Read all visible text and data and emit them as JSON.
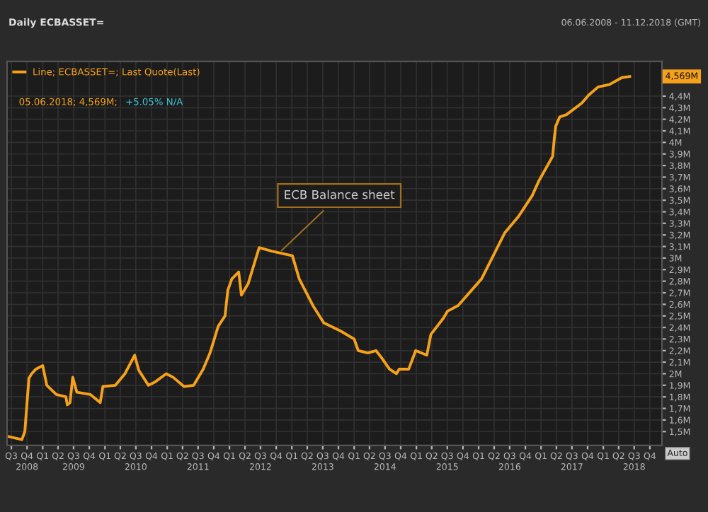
{
  "chart_data": {
    "type": "line",
    "title": "Daily ECBASSET=",
    "subtitle": "06.06.2008 - 11.12.2018 (GMT)",
    "annotations": [
      {
        "text": "ECB Balance sheet",
        "x": "2012-10-15",
        "y": 3.04
      },
      "4,569M",
      "05.06.2018; 4,569M;",
      "+5.05% N/A",
      "Auto"
    ],
    "series": [
      {
        "name": "Line; ECBASSET=; Last Quote(Last)",
        "color": "#f5a11c",
        "x": [
          "2008-06-06",
          "2008-09-01",
          "2008-09-18",
          "2008-10-12",
          "2008-10-28",
          "2008-11-22",
          "2009-01-01",
          "2009-01-25",
          "2009-03-22",
          "2009-05-17",
          "2009-05-25",
          "2009-06-10",
          "2009-06-26",
          "2009-07-20",
          "2009-10-08",
          "2009-12-04",
          "2009-12-20",
          "2010-03-03",
          "2010-04-28",
          "2010-06-24",
          "2010-07-18",
          "2010-09-13",
          "2010-10-23",
          "2010-12-26",
          "2011-02-04",
          "2011-04-09",
          "2011-06-05",
          "2011-07-31",
          "2011-09-09",
          "2011-10-27",
          "2011-12-06",
          "2011-12-22",
          "2012-01-15",
          "2012-02-24",
          "2012-03-11",
          "2012-04-20",
          "2012-06-23",
          "2012-09-04",
          "2013-01-04",
          "2013-02-13",
          "2013-05-04",
          "2013-07-07",
          "2013-10-13",
          "2014-01-01",
          "2014-01-25",
          "2014-03-22",
          "2014-05-09",
          "2014-06-10",
          "2014-07-27",
          "2014-09-06",
          "2014-09-22",
          "2014-11-17",
          "2014-12-28",
          "2015-03-03",
          "2015-03-27",
          "2015-06-08",
          "2015-07-02",
          "2015-09-03",
          "2016-01-18",
          "2016-06-03",
          "2016-08-22",
          "2016-11-10",
          "2016-12-20",
          "2017-03-10",
          "2017-03-20",
          "2017-03-28",
          "2017-04-20",
          "2017-05-30",
          "2017-08-28",
          "2017-10-08",
          "2017-12-02",
          "2018-02-05",
          "2018-04-20",
          "2018-06-05"
        ],
        "values": [
          1.46,
          1.43,
          1.5,
          1.96,
          2.0,
          2.04,
          2.07,
          1.9,
          1.82,
          1.8,
          1.73,
          1.75,
          1.97,
          1.84,
          1.82,
          1.75,
          1.89,
          1.9,
          2.0,
          2.16,
          2.03,
          1.9,
          1.93,
          2.0,
          1.97,
          1.89,
          1.9,
          2.04,
          2.18,
          2.41,
          2.5,
          2.72,
          2.82,
          2.88,
          2.68,
          2.78,
          3.09,
          3.06,
          3.02,
          2.82,
          2.59,
          2.44,
          2.37,
          2.3,
          2.2,
          2.18,
          2.2,
          2.14,
          2.04,
          2.0,
          2.04,
          2.04,
          2.2,
          2.16,
          2.34,
          2.48,
          2.54,
          2.59,
          2.82,
          3.22,
          3.36,
          3.54,
          3.67,
          3.88,
          4.04,
          4.14,
          4.22,
          4.24,
          4.34,
          4.41,
          4.48,
          4.5,
          4.56,
          4.57
        ]
      }
    ],
    "xlim": [
      "2008-06-06",
      "2018-12-11"
    ],
    "xticks": [
      {
        "value": "2008-07-01",
        "label": "Q3"
      },
      {
        "value": "2008-10-01",
        "label": "Q4"
      },
      {
        "value": "2009-01-01",
        "label": "Q1"
      },
      {
        "value": "2009-04-01",
        "label": "Q2"
      },
      {
        "value": "2009-07-01",
        "label": "Q3"
      },
      {
        "value": "2009-10-01",
        "label": "Q4"
      },
      {
        "value": "2010-01-01",
        "label": "Q1"
      },
      {
        "value": "2010-04-01",
        "label": "Q2"
      },
      {
        "value": "2010-07-01",
        "label": "Q3"
      },
      {
        "value": "2010-10-01",
        "label": "Q4"
      },
      {
        "value": "2011-01-01",
        "label": "Q1"
      },
      {
        "value": "2011-04-01",
        "label": "Q2"
      },
      {
        "value": "2011-07-01",
        "label": "Q3"
      },
      {
        "value": "2011-10-01",
        "label": "Q4"
      },
      {
        "value": "2012-01-01",
        "label": "Q1"
      },
      {
        "value": "2012-04-01",
        "label": "Q2"
      },
      {
        "value": "2012-07-01",
        "label": "Q3"
      },
      {
        "value": "2012-10-01",
        "label": "Q4"
      },
      {
        "value": "2013-01-01",
        "label": "Q1"
      },
      {
        "value": "2013-04-01",
        "label": "Q2"
      },
      {
        "value": "2013-07-01",
        "label": "Q3"
      },
      {
        "value": "2013-10-01",
        "label": "Q4"
      },
      {
        "value": "2014-01-01",
        "label": "Q1"
      },
      {
        "value": "2014-04-01",
        "label": "Q2"
      },
      {
        "value": "2014-07-01",
        "label": "Q3"
      },
      {
        "value": "2014-10-01",
        "label": "Q4"
      },
      {
        "value": "2015-01-01",
        "label": "Q1"
      },
      {
        "value": "2015-04-01",
        "label": "Q2"
      },
      {
        "value": "2015-07-01",
        "label": "Q3"
      },
      {
        "value": "2015-10-01",
        "label": "Q4"
      },
      {
        "value": "2016-01-01",
        "label": "Q1"
      },
      {
        "value": "2016-04-01",
        "label": "Q2"
      },
      {
        "value": "2016-07-01",
        "label": "Q3"
      },
      {
        "value": "2016-10-01",
        "label": "Q4"
      },
      {
        "value": "2017-01-01",
        "label": "Q1"
      },
      {
        "value": "2017-04-01",
        "label": "Q2"
      },
      {
        "value": "2017-07-01",
        "label": "Q3"
      },
      {
        "value": "2017-10-01",
        "label": "Q4"
      },
      {
        "value": "2018-01-01",
        "label": "Q1"
      },
      {
        "value": "2018-04-01",
        "label": "Q2"
      },
      {
        "value": "2018-07-01",
        "label": "Q3"
      },
      {
        "value": "2018-10-01",
        "label": "Q4"
      }
    ],
    "x2lim": [
      "2008-06-06",
      "2018-12-11"
    ],
    "x2ticks": [
      {
        "value": "2008-10-01",
        "label": "2008"
      },
      {
        "value": "2009-07-01",
        "label": "2009"
      },
      {
        "value": "2010-07-01",
        "label": "2010"
      },
      {
        "value": "2011-07-01",
        "label": "2011"
      },
      {
        "value": "2012-07-01",
        "label": "2012"
      },
      {
        "value": "2013-07-01",
        "label": "2013"
      },
      {
        "value": "2014-07-01",
        "label": "2014"
      },
      {
        "value": "2015-07-01",
        "label": "2015"
      },
      {
        "value": "2016-07-01",
        "label": "2016"
      },
      {
        "value": "2017-07-01",
        "label": "2017"
      },
      {
        "value": "2018-07-01",
        "label": "2018"
      }
    ],
    "ylim": [
      1.38,
      4.7
    ],
    "yticks": [
      {
        "value": 1.5,
        "label": "1,5M"
      },
      {
        "value": 1.6,
        "label": "1,6M"
      },
      {
        "value": 1.7,
        "label": "1,7M"
      },
      {
        "value": 1.8,
        "label": "1,8M"
      },
      {
        "value": 1.9,
        "label": "1,9M"
      },
      {
        "value": 2,
        "label": "2M"
      },
      {
        "value": 2.1,
        "label": "2,1M"
      },
      {
        "value": 2.2,
        "label": "2,2M"
      },
      {
        "value": 2.3,
        "label": "2,3M"
      },
      {
        "value": 2.4,
        "label": "2,4M"
      },
      {
        "value": 2.5,
        "label": "2,5M"
      },
      {
        "value": 2.6,
        "label": "2,6M"
      },
      {
        "value": 2.7,
        "label": "2,7M"
      },
      {
        "value": 2.8,
        "label": "2,8M"
      },
      {
        "value": 2.9,
        "label": "2,9M"
      },
      {
        "value": 3,
        "label": "3M"
      },
      {
        "value": 3.1,
        "label": "3,1M"
      },
      {
        "value": 3.2,
        "label": "3,2M"
      },
      {
        "value": 3.3,
        "label": "3,3M"
      },
      {
        "value": 3.4,
        "label": "3,4M"
      },
      {
        "value": 3.5,
        "label": "3,5M"
      },
      {
        "value": 3.6,
        "label": "3,6M"
      },
      {
        "value": 3.7,
        "label": "3,7M"
      },
      {
        "value": 3.8,
        "label": "3,8M"
      },
      {
        "value": 3.9,
        "label": "3,9M"
      },
      {
        "value": 4,
        "label": "4M"
      },
      {
        "value": 4.1,
        "label": "4,1M"
      },
      {
        "value": 4.2,
        "label": "4,2M"
      },
      {
        "value": 4.3,
        "label": "4,3M"
      },
      {
        "value": 4.4,
        "label": "4,4M"
      }
    ],
    "grid": true,
    "legend": "top left",
    "line_style": "solid",
    "marker": "none"
  }
}
